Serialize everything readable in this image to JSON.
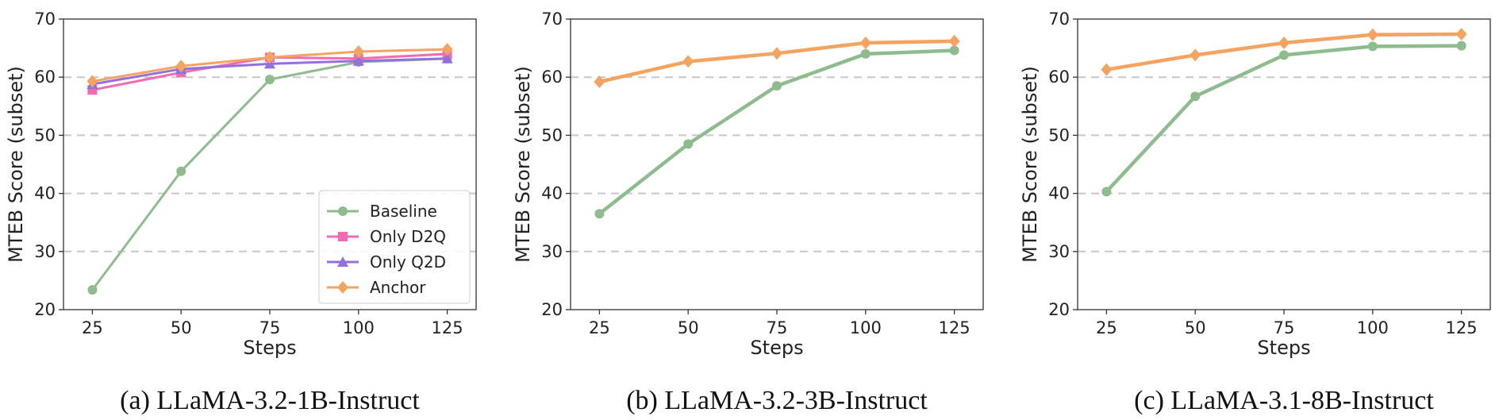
{
  "colors": {
    "Baseline": "#8fbc8f",
    "Only D2Q": "#f06bb0",
    "Only Q2D": "#9370db",
    "Anchor": "#f4a460",
    "grid": "#c8c8c8",
    "axis": "#333333"
  },
  "chart_data": [
    {
      "type": "line",
      "caption": "(a) LLaMA-3.2-1B-Instruct",
      "xlabel": "Steps",
      "ylabel": "MTEB Score (subset)",
      "x": [
        25,
        50,
        75,
        100,
        125
      ],
      "xticks": [
        "25",
        "50",
        "75",
        "100",
        "125"
      ],
      "yticks": [
        "20",
        "30",
        "40",
        "50",
        "60",
        "70"
      ],
      "ylim": [
        20,
        70
      ],
      "grid": "horizontal dashed",
      "legend": "bottom-right",
      "series": [
        {
          "name": "Baseline",
          "marker": "circle",
          "values": [
            23.4,
            43.8,
            59.6,
            62.6,
            63.2
          ]
        },
        {
          "name": "Only D2Q",
          "marker": "square",
          "values": [
            57.8,
            60.8,
            63.4,
            63.2,
            64.0
          ]
        },
        {
          "name": "Only Q2D",
          "marker": "triangle",
          "values": [
            58.8,
            61.4,
            62.3,
            62.8,
            63.2
          ]
        },
        {
          "name": "Anchor",
          "marker": "diamond",
          "values": [
            59.3,
            61.9,
            63.4,
            64.4,
            64.8
          ]
        }
      ]
    },
    {
      "type": "line",
      "caption": "(b) LLaMA-3.2-3B-Instruct",
      "xlabel": "Steps",
      "ylabel": "MTEB Score (subset)",
      "x": [
        25,
        50,
        75,
        100,
        125
      ],
      "xticks": [
        "25",
        "50",
        "75",
        "100",
        "125"
      ],
      "yticks": [
        "20",
        "30",
        "40",
        "50",
        "60",
        "70"
      ],
      "ylim": [
        20,
        70
      ],
      "grid": "horizontal dashed",
      "legend": "none",
      "series": [
        {
          "name": "Baseline",
          "marker": "circle",
          "values": [
            36.5,
            48.5,
            58.5,
            64.0,
            64.6
          ]
        },
        {
          "name": "Anchor",
          "marker": "diamond",
          "values": [
            59.2,
            62.7,
            64.1,
            65.9,
            66.2
          ]
        }
      ]
    },
    {
      "type": "line",
      "caption": "(c) LLaMA-3.1-8B-Instruct",
      "xlabel": "Steps",
      "ylabel": "MTEB Score (subset)",
      "x": [
        25,
        50,
        75,
        100,
        125
      ],
      "xticks": [
        "25",
        "50",
        "75",
        "100",
        "125"
      ],
      "yticks": [
        "20",
        "30",
        "40",
        "50",
        "60",
        "70"
      ],
      "ylim": [
        20,
        70
      ],
      "grid": "horizontal dashed",
      "legend": "none",
      "series": [
        {
          "name": "Baseline",
          "marker": "circle",
          "values": [
            40.3,
            56.7,
            63.8,
            65.3,
            65.4
          ]
        },
        {
          "name": "Anchor",
          "marker": "diamond",
          "values": [
            61.3,
            63.8,
            65.9,
            67.3,
            67.4
          ]
        }
      ]
    }
  ]
}
